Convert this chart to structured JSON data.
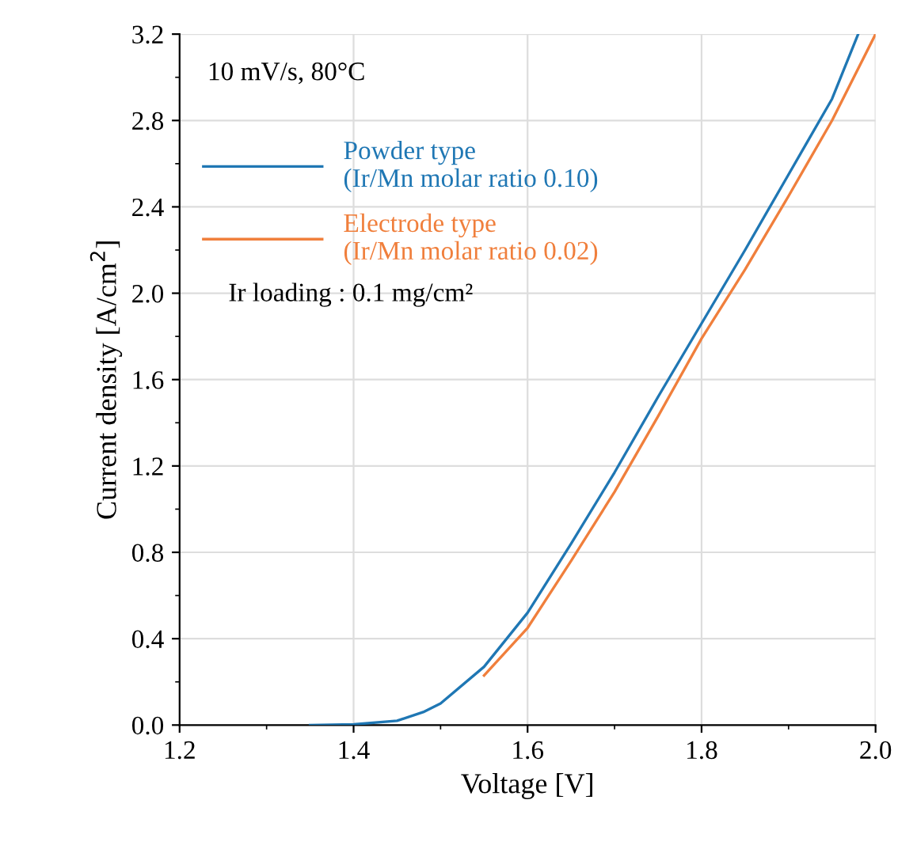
{
  "chart_data": {
    "type": "line",
    "xlabel": "Voltage [V]",
    "ylabel": "Current density [A/cm$^{2}$]",
    "xlim": [
      1.2,
      2.0
    ],
    "xticks": [
      1.2,
      1.4,
      1.6,
      1.8,
      {
        "value": 2,
        "label": "2.0"
      }
    ],
    "ylim": [
      0,
      3.2
    ],
    "yticks": [
      {
        "value": 0,
        "label": "0.0"
      },
      0.4,
      0.8,
      1.2,
      1.6,
      {
        "value": 2,
        "label": "2.0"
      },
      2.4,
      2.8,
      3.2
    ],
    "grid": true,
    "legend": "top left",
    "line_style": "solid",
    "annotations": [
      "10 mV/s, 80°C",
      "Ir loading : 0.1 mg/cm²"
    ],
    "series": [
      {
        "name": "Powder type\n(Ir/Mn molar ratio 0.10)",
        "color": "#1f77b4",
        "x": [
          1.35,
          1.4,
          1.45,
          1.48,
          1.5,
          1.55,
          1.6,
          1.65,
          1.7,
          1.75,
          1.8,
          1.85,
          1.9,
          1.95,
          1.98
        ],
        "values": [
          0,
          0.003,
          0.02,
          0.06,
          0.1,
          0.27,
          0.52,
          0.84,
          1.17,
          1.52,
          1.86,
          2.2,
          2.55,
          2.9,
          3.2
        ]
      },
      {
        "name": "Electrode type\n(Ir/Mn molar ratio 0.02)",
        "color": "#f07f3c",
        "x": [
          1.55,
          1.6,
          1.65,
          1.7,
          1.75,
          1.8,
          1.85,
          1.9,
          1.95,
          2.0
        ],
        "values": [
          0.23,
          0.45,
          0.76,
          1.08,
          1.43,
          1.79,
          2.11,
          2.45,
          2.8,
          3.2
        ]
      }
    ]
  }
}
